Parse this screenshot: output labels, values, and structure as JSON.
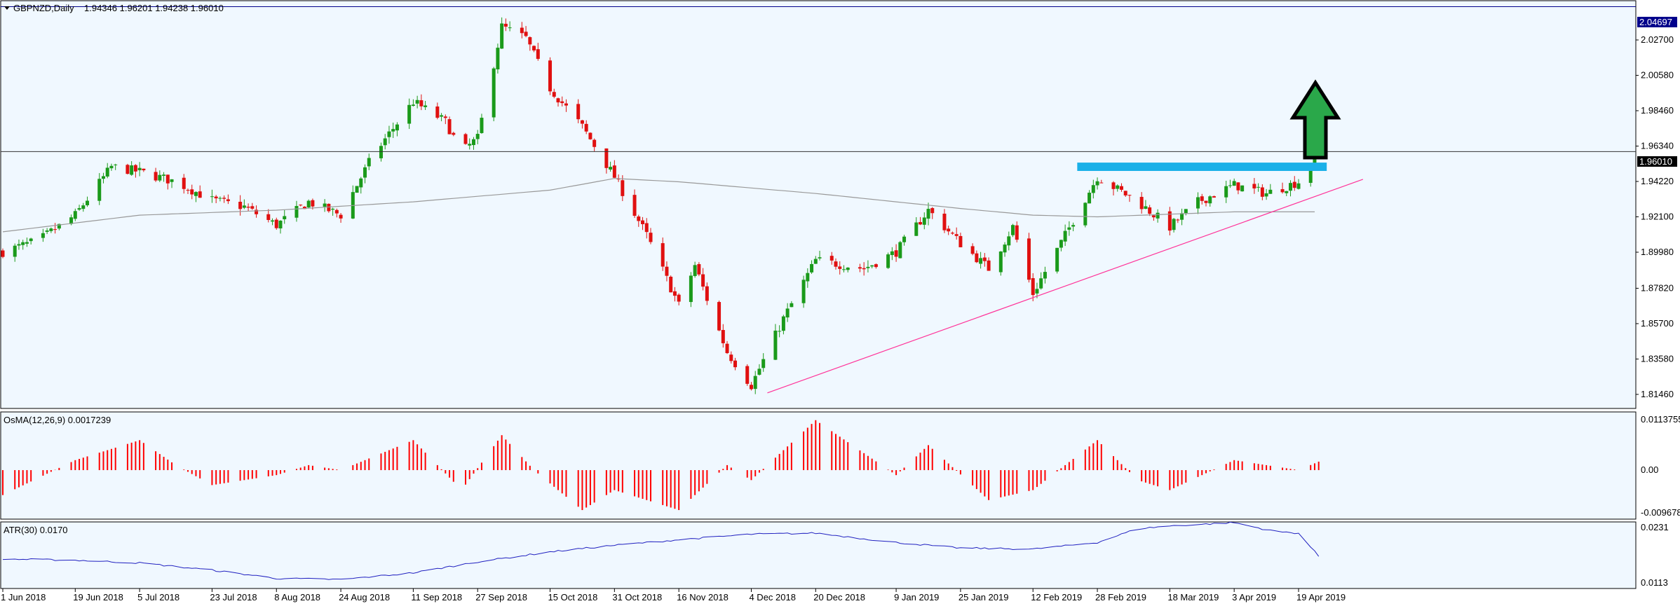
{
  "header": {
    "symbol": "GBPNZD,Daily",
    "ohlc": "1.94346 1.96201 1.94238 1.96010"
  },
  "panels": {
    "osma_label": "OsMA(12,26,9) 0.0017239",
    "atr_label": "ATR(30) 0.0170"
  },
  "price_labels": {
    "top_line": "2.04697",
    "current": "1.96010"
  },
  "colors": {
    "background": "#f0f8ff",
    "bull": "#1a9a1a",
    "bear": "#e01010",
    "osma_bar": "#ff0000",
    "atr_line": "#2020c0",
    "ma_line": "#999999",
    "resistance_box": "#1ab0e8",
    "trendline": "#ff3399",
    "top_line": "#00008b",
    "arrow_fill": "#2aa84a"
  },
  "icons": {
    "dropdown": "triangle-down-icon",
    "arrow": "up-arrow-icon"
  },
  "chart_data": [
    {
      "type": "candlestick",
      "title": "GBPNZD,Daily",
      "ylim": [
        1.8066,
        2.0501
      ],
      "y_ticks": [
        "2.02700",
        "2.00580",
        "1.98460",
        "1.96340",
        "1.94220",
        "1.92100",
        "1.89980",
        "1.87820",
        "1.85700",
        "1.83580",
        "1.81460"
      ],
      "x_ticks": [
        "1 Jun 2018",
        "19 Jun 2018",
        "5 Jul 2018",
        "23 Jul 2018",
        "8 Aug 2018",
        "24 Aug 2018",
        "11 Sep 2018",
        "27 Sep 2018",
        "15 Oct 2018",
        "31 Oct 2018",
        "16 Nov 2018",
        "4 Dec 2018",
        "20 Dec 2018",
        "9 Jan 2019",
        "25 Jan 2019",
        "12 Feb 2019",
        "28 Feb 2019",
        "18 Mar 2019",
        "3 Apr 2019",
        "19 Apr 2019"
      ],
      "close_path": [
        [
          "1 Jun 2018",
          1.9
        ],
        [
          "10 Jun 2018",
          1.907
        ],
        [
          "19 Jun 2018",
          1.922
        ],
        [
          "28 Jun 2018",
          1.951
        ],
        [
          "5 Jul 2018",
          1.948
        ],
        [
          "14 Jul 2018",
          1.942
        ],
        [
          "23 Jul 2018",
          1.931
        ],
        [
          "31 Jul 2018",
          1.927
        ],
        [
          "8 Aug 2018",
          1.916
        ],
        [
          "16 Aug 2018",
          1.93
        ],
        [
          "24 Aug 2018",
          1.922
        ],
        [
          "1 Sep 2018",
          1.958
        ],
        [
          "11 Sep 2018",
          1.99
        ],
        [
          "19 Sep 2018",
          1.978
        ],
        [
          "23 Sep 2018",
          1.96
        ],
        [
          "27 Sep 2018",
          1.968
        ],
        [
          "3 Oct 2018",
          2.035
        ],
        [
          "9 Oct 2018",
          2.028
        ],
        [
          "15 Oct 2018",
          1.998
        ],
        [
          "23 Oct 2018",
          1.975
        ],
        [
          "31 Oct 2018",
          1.945
        ],
        [
          "8 Nov 2018",
          1.91
        ],
        [
          "16 Nov 2018",
          1.868
        ],
        [
          "20 Nov 2018",
          1.892
        ],
        [
          "24 Nov 2018",
          1.865
        ],
        [
          "28 Nov 2018",
          1.84
        ],
        [
          "4 Dec 2018",
          1.82
        ],
        [
          "12 Dec 2018",
          1.86
        ],
        [
          "20 Dec 2018",
          1.895
        ],
        [
          "1 Jan 2019",
          1.89
        ],
        [
          "9 Jan 2019",
          1.9
        ],
        [
          "17 Jan 2019",
          1.925
        ],
        [
          "25 Jan 2019",
          1.905
        ],
        [
          "1 Feb 2019",
          1.89
        ],
        [
          "7 Feb 2019",
          1.915
        ],
        [
          "12 Feb 2019",
          1.875
        ],
        [
          "20 Feb 2019",
          1.91
        ],
        [
          "28 Feb 2019",
          1.945
        ],
        [
          "10 Mar 2019",
          1.93
        ],
        [
          "18 Mar 2019",
          1.915
        ],
        [
          "25 Mar 2019",
          1.93
        ],
        [
          "3 Apr 2019",
          1.94
        ],
        [
          "11 Apr 2019",
          1.935
        ],
        [
          "19 Apr 2019",
          1.942
        ],
        [
          "24 Apr 2019",
          1.96
        ]
      ],
      "moving_average_path": [
        [
          "1 Jun 2018",
          1.912
        ],
        [
          "5 Jul 2018",
          1.922
        ],
        [
          "8 Aug 2018",
          1.925
        ],
        [
          "11 Sep 2018",
          1.93
        ],
        [
          "15 Oct 2018",
          1.937
        ],
        [
          "31 Oct 2018",
          1.944
        ],
        [
          "16 Nov 2018",
          1.942
        ],
        [
          "20 Dec 2018",
          1.935
        ],
        [
          "25 Jan 2019",
          1.926
        ],
        [
          "12 Feb 2019",
          1.922
        ],
        [
          "28 Feb 2019",
          1.921
        ],
        [
          "3 Apr 2019",
          1.924
        ],
        [
          "24 Apr 2019",
          1.924
        ]
      ],
      "trendline": [
        [
          "8 Dec 2018",
          1.8155
        ],
        [
          "5 May 2019",
          1.9435
        ]
      ],
      "horizontal_lines": [
        2.04697,
        1.9601
      ],
      "resistance_zone": {
        "from": "23 Feb 2019",
        "to": "26 Apr 2019",
        "low": 1.9485,
        "high": 1.9535
      }
    },
    {
      "type": "bar",
      "title": "OsMA(12,26,9) 0.0017239",
      "ylim": [
        -0.0096782,
        0.0113755
      ],
      "y_ticks": [
        "0.0113755",
        "0.00",
        "-0.0096782"
      ],
      "path": [
        [
          "1 Jun 2018",
          -0.005
        ],
        [
          "19 Jun 2018",
          0.002
        ],
        [
          "5 Jul 2018",
          0.006
        ],
        [
          "14 Jul 2018",
          0.001
        ],
        [
          "23 Jul 2018",
          -0.003
        ],
        [
          "8 Aug 2018",
          -0.001
        ],
        [
          "16 Aug 2018",
          0.001
        ],
        [
          "24 Aug 2018",
          0.0
        ],
        [
          "11 Sep 2018",
          0.006
        ],
        [
          "23 Sep 2018",
          -0.004
        ],
        [
          "3 Oct 2018",
          0.007
        ],
        [
          "11 Oct 2018",
          0.0
        ],
        [
          "23 Oct 2018",
          -0.008
        ],
        [
          "31 Oct 2018",
          -0.004
        ],
        [
          "16 Nov 2018",
          -0.008
        ],
        [
          "28 Nov 2018",
          0.001
        ],
        [
          "4 Dec 2018",
          -0.002
        ],
        [
          "20 Dec 2018",
          0.01
        ],
        [
          "9 Jan 2019",
          -0.001
        ],
        [
          "17 Jan 2019",
          0.005
        ],
        [
          "1 Feb 2019",
          -0.006
        ],
        [
          "12 Feb 2019",
          -0.004
        ],
        [
          "28 Feb 2019",
          0.006
        ],
        [
          "10 Mar 2019",
          -0.002
        ],
        [
          "18 Mar 2019",
          -0.004
        ],
        [
          "3 Apr 2019",
          0.002
        ],
        [
          "19 Apr 2019",
          0.0
        ],
        [
          "24 Apr 2019",
          0.0017
        ]
      ]
    },
    {
      "type": "line",
      "title": "ATR(30) 0.0170",
      "ylim": [
        0.0113,
        0.0231
      ],
      "y_ticks": [
        "0.0231",
        "0.0113"
      ],
      "path": [
        [
          "1 Jun 2018",
          0.0165
        ],
        [
          "19 Jun 2018",
          0.0163
        ],
        [
          "5 Jul 2018",
          0.0158
        ],
        [
          "23 Jul 2018",
          0.0145
        ],
        [
          "8 Aug 2018",
          0.013
        ],
        [
          "24 Aug 2018",
          0.0128
        ],
        [
          "11 Sep 2018",
          0.014
        ],
        [
          "27 Sep 2018",
          0.016
        ],
        [
          "15 Oct 2018",
          0.0178
        ],
        [
          "31 Oct 2018",
          0.019
        ],
        [
          "16 Nov 2018",
          0.02
        ],
        [
          "4 Dec 2018",
          0.021
        ],
        [
          "20 Dec 2018",
          0.0212
        ],
        [
          "9 Jan 2019",
          0.0195
        ],
        [
          "25 Jan 2019",
          0.0185
        ],
        [
          "12 Feb 2019",
          0.0183
        ],
        [
          "28 Feb 2019",
          0.0195
        ],
        [
          "10 Mar 2019",
          0.022
        ],
        [
          "18 Mar 2019",
          0.0225
        ],
        [
          "3 Apr 2019",
          0.0231
        ],
        [
          "13 Apr 2019",
          0.0215
        ],
        [
          "19 Apr 2019",
          0.0212
        ],
        [
          "24 Apr 2019",
          0.017
        ]
      ]
    }
  ]
}
